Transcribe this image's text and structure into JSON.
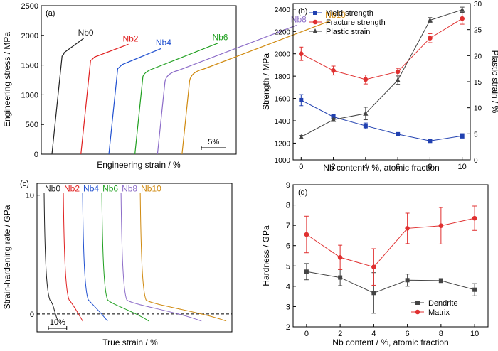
{
  "chart_data": [
    {
      "type": "line",
      "panel_label": "(a)",
      "xlabel": "Engineering strain / %",
      "ylabel": "Engineering stress / MPa",
      "ylim": [
        0,
        2500
      ],
      "yticks": [
        0,
        500,
        1000,
        1500,
        2000,
        2500
      ],
      "x_unit": "%",
      "scale_bar": {
        "label": "5%",
        "length": 5
      },
      "series": [
        {
          "name": "Nb0",
          "color": "#222222",
          "offset": 0,
          "yield": 1650,
          "fracture": 1950,
          "plastic": 4.4
        },
        {
          "name": "Nb2",
          "color": "#e02020",
          "offset": 5.9,
          "yield": 1580,
          "fracture": 1850,
          "plastic": 7.7
        },
        {
          "name": "Nb4",
          "color": "#2050d0",
          "offset": 11.6,
          "yield": 1440,
          "fracture": 1780,
          "plastic": 8.9
        },
        {
          "name": "Nb6",
          "color": "#20a020",
          "offset": 16.9,
          "yield": 1310,
          "fracture": 1870,
          "plastic": 15.3
        },
        {
          "name": "Nb8",
          "color": "#8c6cc8",
          "offset": 21.5,
          "yield": 1220,
          "fracture": 2170,
          "plastic": 26.8
        },
        {
          "name": "Nb10",
          "color": "#d08a10",
          "offset": 26.5,
          "yield": 1230,
          "fracture": 2250,
          "plastic": 28.8
        }
      ]
    },
    {
      "type": "line",
      "panel_label": "(b)",
      "xlabel": "Nb content / %, atomic fraction",
      "ylabel": "Strength / MPa",
      "y2label": "Plastic strain / %",
      "x": [
        0,
        2,
        4,
        6,
        8,
        10
      ],
      "xlim": [
        -0.5,
        10.5
      ],
      "ylim": [
        1050,
        2450
      ],
      "yticks": [
        1000,
        1200,
        1400,
        1600,
        1800,
        2000,
        2200,
        2400
      ],
      "y2lim": [
        0,
        30
      ],
      "y2ticks": [
        0,
        5,
        10,
        15,
        20,
        25,
        30
      ],
      "legend_position": "top-left",
      "series": [
        {
          "name": "Yield strength",
          "axis": "left",
          "marker": "square",
          "color": "#2040b0",
          "values": [
            1585,
            1435,
            1355,
            1280,
            1220,
            1265
          ],
          "errors": [
            50,
            20,
            25,
            10,
            10,
            20
          ]
        },
        {
          "name": "Fracture strength",
          "axis": "left",
          "marker": "circle",
          "color": "#e03030",
          "values": [
            2000,
            1850,
            1770,
            1840,
            2140,
            2315
          ],
          "errors": [
            60,
            40,
            40,
            30,
            40,
            50
          ]
        },
        {
          "name": "Plastic strain",
          "axis": "right",
          "marker": "triangle",
          "color": "#444444",
          "values": [
            4.4,
            7.7,
            8.9,
            15.3,
            26.8,
            28.8
          ],
          "errors": [
            0.3,
            0.3,
            1.2,
            0.8,
            0.5,
            0.5
          ]
        }
      ]
    },
    {
      "type": "line",
      "panel_label": "(c)",
      "xlabel": "True strain / %",
      "ylabel": "Strain-hardening rate / GPa",
      "yticks": [
        0,
        10
      ],
      "ylim": [
        -1.5,
        11
      ],
      "scale_bar": {
        "label": "10%",
        "length": 10
      },
      "series": [
        {
          "name": "Nb0",
          "color": "#222222",
          "offset": 0,
          "plastic": 5
        },
        {
          "name": "Nb2",
          "color": "#e02020",
          "offset": 10.5,
          "plastic": 7
        },
        {
          "name": "Nb4",
          "color": "#2050d0",
          "offset": 21,
          "plastic": 9
        },
        {
          "name": "Nb6",
          "color": "#20a020",
          "offset": 31.5,
          "plastic": 17
        },
        {
          "name": "Nb8",
          "color": "#8c6cc8",
          "offset": 42,
          "plastic": 29
        },
        {
          "name": "Nb10",
          "color": "#d08a10",
          "offset": 52.5,
          "plastic": 31
        }
      ]
    },
    {
      "type": "line",
      "panel_label": "(d)",
      "xlabel": "Nb content / %, atomic fraction",
      "ylabel": "Hardness / GPa",
      "x": [
        0,
        2,
        4,
        6,
        8,
        10
      ],
      "xlim": [
        -0.8,
        10.8
      ],
      "ylim": [
        2,
        9
      ],
      "yticks": [
        2,
        3,
        4,
        5,
        6,
        7,
        8,
        9
      ],
      "legend_position": "bottom-right",
      "series": [
        {
          "name": "Dendrite",
          "marker": "square",
          "color": "#444444",
          "values": [
            4.72,
            4.43,
            3.67,
            4.3,
            4.28,
            3.83
          ],
          "errors": [
            0.4,
            0.4,
            1.0,
            0.3,
            0.1,
            0.3
          ]
        },
        {
          "name": "Matrix",
          "marker": "circle",
          "color": "#e03030",
          "values": [
            6.55,
            5.42,
            4.95,
            6.85,
            6.98,
            7.35
          ],
          "errors": [
            0.9,
            0.6,
            0.9,
            0.75,
            0.9,
            0.6
          ]
        }
      ]
    }
  ]
}
